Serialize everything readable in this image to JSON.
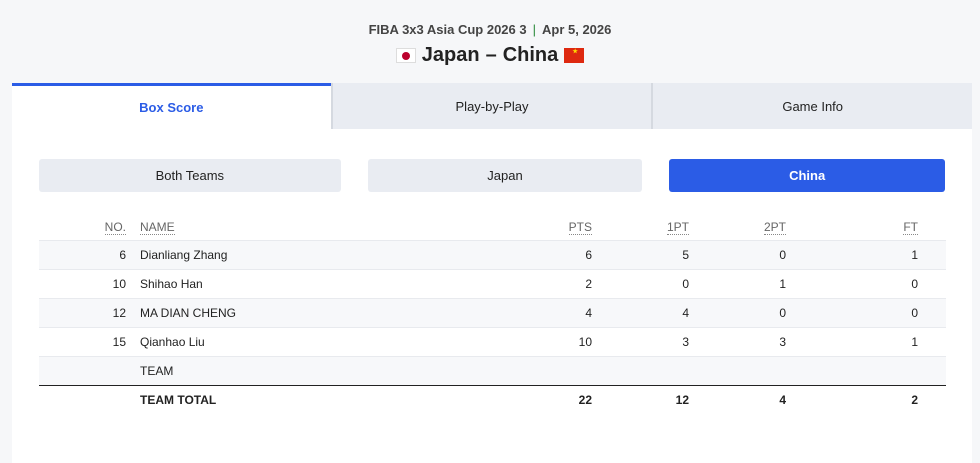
{
  "header": {
    "event": "FIBA 3x3 Asia Cup 2026 3",
    "separator": "|",
    "date": "Apr 5, 2026",
    "home": "Japan",
    "dash": "–",
    "away": "China"
  },
  "tabs": [
    {
      "label": "Box Score",
      "active": true
    },
    {
      "label": "Play-by-Play"
    },
    {
      "label": "Game Info"
    }
  ],
  "filters": [
    {
      "label": "Both Teams"
    },
    {
      "label": "Japan"
    },
    {
      "label": "China",
      "active": true
    }
  ],
  "colors": {
    "accent": "#2b5ce6"
  },
  "table": {
    "columns": [
      "NO.",
      "NAME",
      "PTS",
      "1PT",
      "2PT",
      "FT"
    ],
    "rows": [
      [
        "6",
        "Dianliang Zhang",
        "6",
        "5",
        "0",
        "1"
      ],
      [
        "10",
        "Shihao Han",
        "2",
        "0",
        "1",
        "0"
      ],
      [
        "12",
        "MA DIAN CHENG",
        "4",
        "4",
        "0",
        "0"
      ],
      [
        "15",
        "Qianhao Liu",
        "10",
        "3",
        "3",
        "1"
      ],
      [
        "",
        "TEAM",
        "",
        "",
        "",
        ""
      ]
    ],
    "total": [
      "",
      "TEAM TOTAL",
      "22",
      "12",
      "4",
      "2"
    ]
  }
}
